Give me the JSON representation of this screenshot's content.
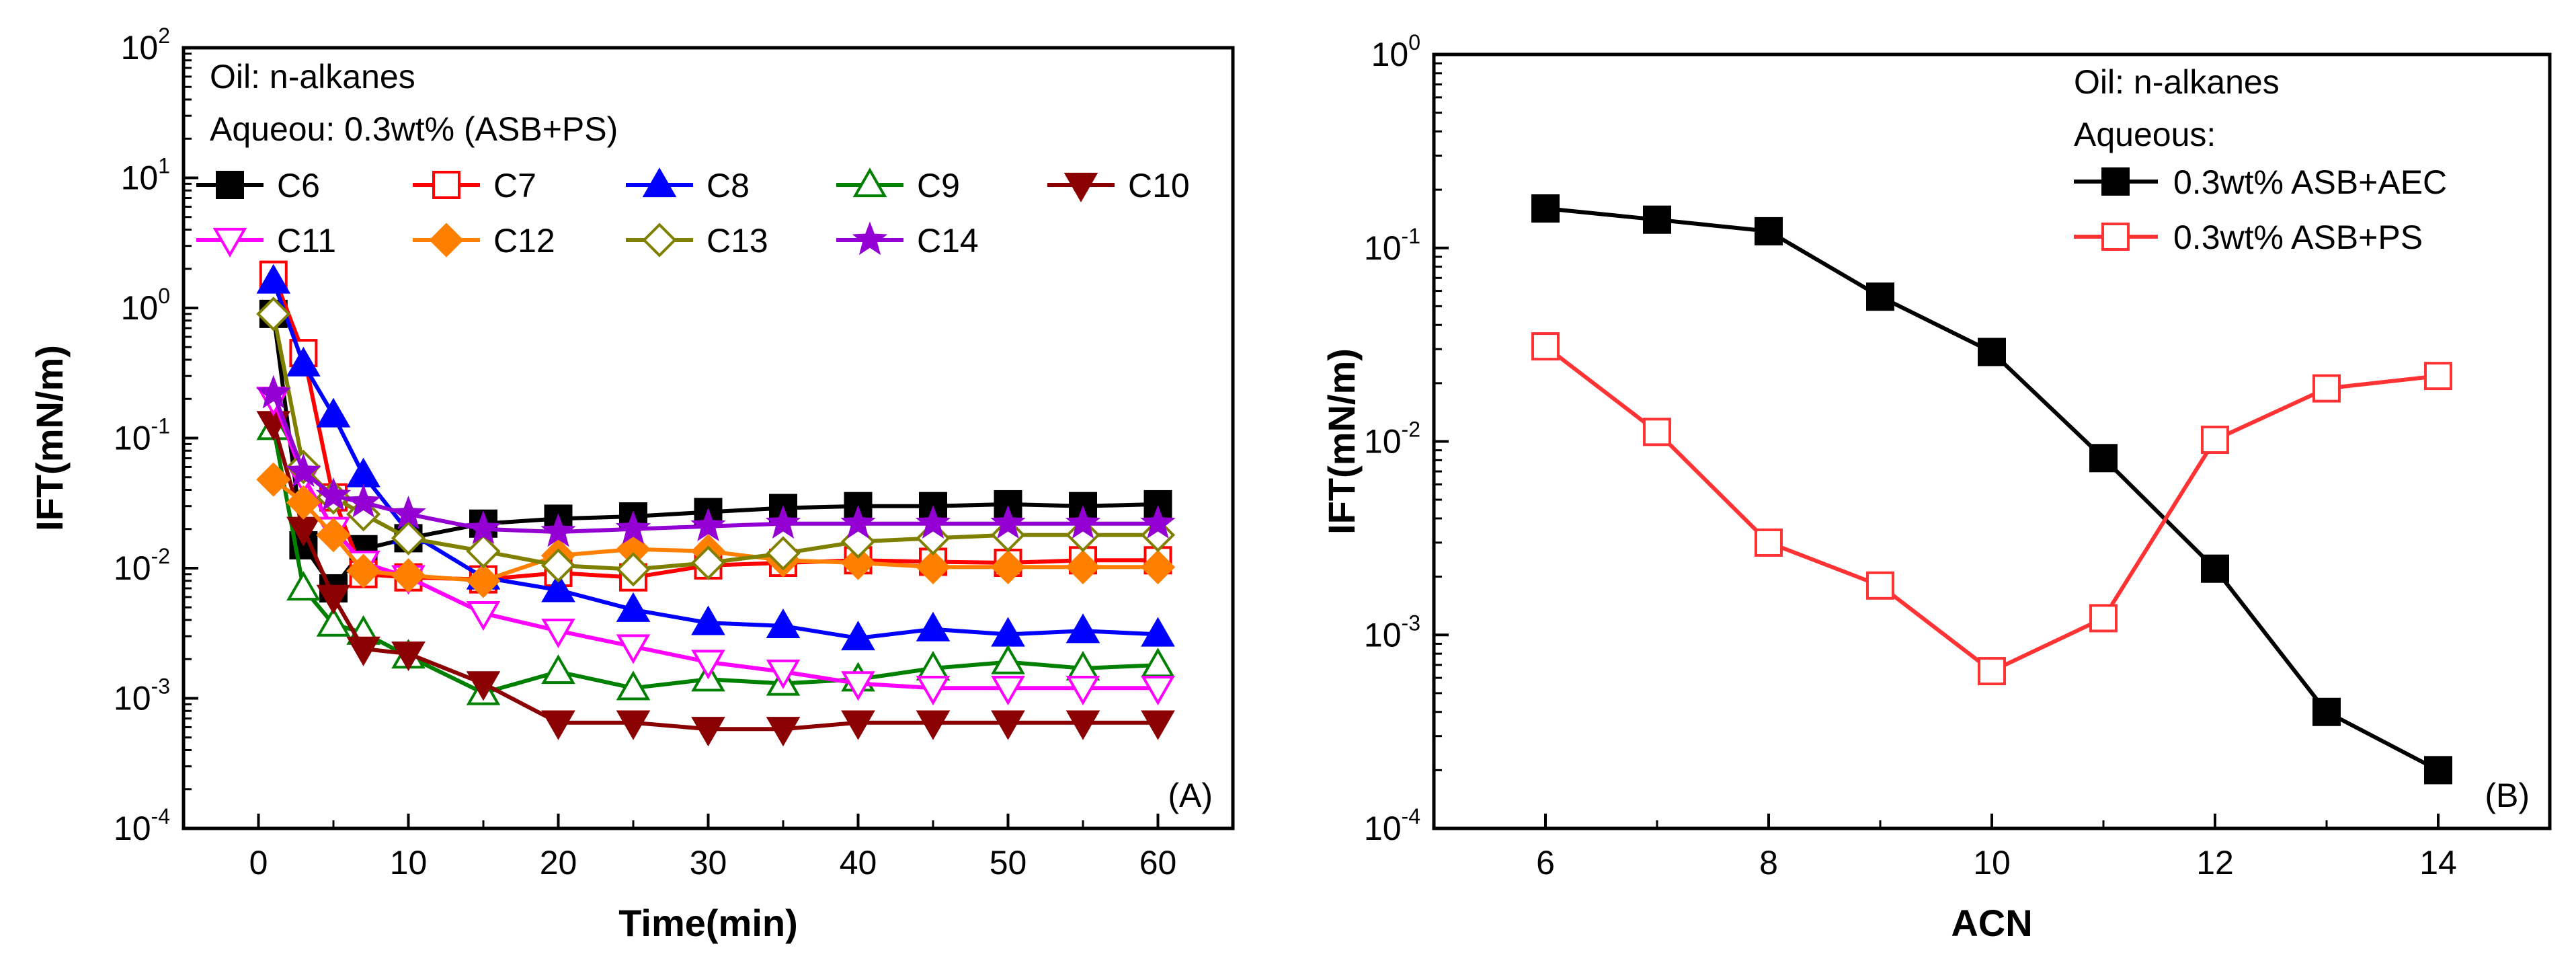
{
  "chart_data": [
    {
      "type": "line",
      "panel_label": "(A)",
      "xlabel": "Time(min)",
      "ylabel": "IFT(mN/m)",
      "y_scale": "log",
      "xlim": [
        -5,
        65
      ],
      "ylim_log10": [
        -4,
        2
      ],
      "xticks": [
        0,
        10,
        20,
        30,
        40,
        50,
        60
      ],
      "yticks": [
        {
          "base": "10",
          "exp": "-4",
          "log": -4
        },
        {
          "base": "10",
          "exp": "-3",
          "log": -3
        },
        {
          "base": "10",
          "exp": "-2",
          "log": -2
        },
        {
          "base": "10",
          "exp": "-1",
          "log": -1
        },
        {
          "base": "10",
          "exp": "0",
          "log": 0
        },
        {
          "base": "10",
          "exp": "1",
          "log": 1
        },
        {
          "base": "10",
          "exp": "2",
          "log": 2
        }
      ],
      "annotations": [
        "Oil: n-alkanes",
        "Aqueou: 0.3wt% (ASB+PS)"
      ],
      "x": [
        1,
        3,
        5,
        7,
        10,
        15,
        20,
        25,
        30,
        35,
        40,
        45,
        50,
        55,
        60
      ],
      "series": [
        {
          "name": "C6",
          "color": "#000000",
          "marker": "square",
          "fill": true,
          "values": [
            0.9,
            0.015,
            0.007,
            0.014,
            0.017,
            0.022,
            0.024,
            0.025,
            0.027,
            0.029,
            0.03,
            0.03,
            0.031,
            0.03,
            0.031
          ]
        },
        {
          "name": "C7",
          "color": "#ff0000",
          "marker": "square",
          "fill": false,
          "values": [
            1.8,
            0.45,
            0.035,
            0.009,
            0.0085,
            0.0082,
            0.0092,
            0.0085,
            0.0105,
            0.011,
            0.0115,
            0.0112,
            0.011,
            0.0115,
            0.0115
          ]
        },
        {
          "name": "C8",
          "color": "#0000ff",
          "marker": "triangle-up",
          "fill": true,
          "values": [
            1.6,
            0.37,
            0.15,
            0.052,
            0.019,
            0.0085,
            0.0068,
            0.0048,
            0.0038,
            0.0036,
            0.0029,
            0.0034,
            0.0031,
            0.0033,
            0.0031
          ]
        },
        {
          "name": "C9",
          "color": "#008000",
          "marker": "triangle-up",
          "fill": false,
          "values": [
            0.12,
            0.007,
            0.0037,
            0.0032,
            0.0021,
            0.0011,
            0.0016,
            0.0012,
            0.0014,
            0.0013,
            0.0014,
            0.0017,
            0.0019,
            0.0017,
            0.0018
          ]
        },
        {
          "name": "C10",
          "color": "#8b0000",
          "marker": "triangle-down",
          "fill": true,
          "values": [
            0.13,
            0.02,
            0.006,
            0.0024,
            0.0022,
            0.0013,
            0.00065,
            0.00065,
            0.00058,
            0.00058,
            0.00065,
            0.00065,
            0.00065,
            0.00065,
            0.00065
          ]
        },
        {
          "name": "C11",
          "color": "#ff00ff",
          "marker": "triangle-down",
          "fill": false,
          "values": [
            0.2,
            0.05,
            0.02,
            0.011,
            0.0085,
            0.0045,
            0.0033,
            0.0025,
            0.0019,
            0.0016,
            0.0013,
            0.0012,
            0.0012,
            0.0012,
            0.0012
          ]
        },
        {
          "name": "C12",
          "color": "#ff8000",
          "marker": "diamond",
          "fill": true,
          "values": [
            0.048,
            0.032,
            0.018,
            0.0095,
            0.0088,
            0.008,
            0.0125,
            0.014,
            0.0135,
            0.0115,
            0.011,
            0.0102,
            0.0102,
            0.0102,
            0.0102
          ]
        },
        {
          "name": "C13",
          "color": "#808000",
          "marker": "diamond",
          "fill": false,
          "values": [
            0.9,
            0.06,
            0.035,
            0.026,
            0.017,
            0.0135,
            0.0105,
            0.0098,
            0.011,
            0.013,
            0.016,
            0.017,
            0.018,
            0.018,
            0.018
          ]
        },
        {
          "name": "C14",
          "color": "#9400d3",
          "marker": "star",
          "fill": true,
          "values": [
            0.22,
            0.055,
            0.036,
            0.032,
            0.026,
            0.02,
            0.019,
            0.02,
            0.021,
            0.022,
            0.022,
            0.022,
            0.022,
            0.022,
            0.022
          ]
        }
      ]
    },
    {
      "type": "line",
      "panel_label": "(B)",
      "xlabel": "ACN",
      "ylabel": "IFT(mN/m)",
      "y_scale": "log",
      "xlim": [
        5,
        15
      ],
      "ylim_log10": [
        -4,
        0
      ],
      "xticks": [
        6,
        8,
        10,
        12,
        14
      ],
      "yticks": [
        {
          "base": "10",
          "exp": "-4",
          "log": -4
        },
        {
          "base": "10",
          "exp": "-3",
          "log": -3
        },
        {
          "base": "10",
          "exp": "-2",
          "log": -2
        },
        {
          "base": "10",
          "exp": "-1",
          "log": -1
        },
        {
          "base": "10",
          "exp": "0",
          "log": 0
        }
      ],
      "annotations": [
        "Oil: n-alkanes",
        "Aqueous:"
      ],
      "x": [
        6,
        7,
        8,
        9,
        10,
        11,
        12,
        13,
        14
      ],
      "series": [
        {
          "name": "0.3wt% ASB+AEC",
          "color": "#000000",
          "marker": "square",
          "fill": true,
          "values": [
            0.16,
            0.14,
            0.122,
            0.056,
            0.029,
            0.0082,
            0.0022,
            0.0004,
            0.0002
          ]
        },
        {
          "name": "0.3wt% ASB+PS",
          "color": "#ff3333",
          "marker": "square",
          "fill": false,
          "values": [
            0.031,
            0.0112,
            0.003,
            0.0018,
            0.00065,
            0.00122,
            0.0102,
            0.0188,
            0.0218
          ]
        }
      ]
    }
  ]
}
